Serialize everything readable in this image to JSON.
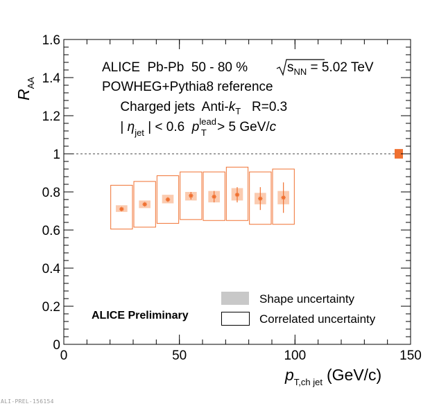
{
  "chart_data": {
    "type": "scatter",
    "xlabel": {
      "main": "p",
      "sub": "T,ch jet",
      "unit": "(GeV/c)"
    },
    "ylabel": {
      "main": "R",
      "sub": "AA"
    },
    "xlim": [
      0,
      150
    ],
    "ylim": [
      0,
      1.6
    ],
    "xticks": [
      0,
      50,
      100,
      150
    ],
    "yticks": [
      0,
      0.2,
      0.4,
      0.6,
      0.8,
      1,
      1.2,
      1.4,
      1.6
    ],
    "ytick_labels": [
      "0",
      "0.2",
      "0.4",
      "0.6",
      "0.8",
      "1",
      "1.2",
      "1.4",
      "1.6"
    ],
    "reference_line": 1.0,
    "color": "#f07030",
    "shape_color": "#fbcbb0",
    "bins": [
      {
        "x": 25,
        "xlow": 20,
        "xhigh": 30,
        "y": 0.71,
        "stat": 0.005,
        "shape": [
          0.695,
          0.73
        ],
        "corr": [
          0.605,
          0.835
        ]
      },
      {
        "x": 35,
        "xlow": 30,
        "xhigh": 40,
        "y": 0.735,
        "stat": 0.01,
        "shape": [
          0.715,
          0.755
        ],
        "corr": [
          0.615,
          0.855
        ]
      },
      {
        "x": 45,
        "xlow": 40,
        "xhigh": 50,
        "y": 0.76,
        "stat": 0.012,
        "shape": [
          0.74,
          0.785
        ],
        "corr": [
          0.635,
          0.885
        ]
      },
      {
        "x": 55,
        "xlow": 50,
        "xhigh": 60,
        "y": 0.78,
        "stat": 0.02,
        "shape": [
          0.755,
          0.8
        ],
        "corr": [
          0.655,
          0.905
        ]
      },
      {
        "x": 65,
        "xlow": 60,
        "xhigh": 70,
        "y": 0.775,
        "stat": 0.03,
        "shape": [
          0.745,
          0.805
        ],
        "corr": [
          0.65,
          0.905
        ]
      },
      {
        "x": 75,
        "xlow": 70,
        "xhigh": 80,
        "y": 0.785,
        "stat": 0.04,
        "shape": [
          0.755,
          0.82
        ],
        "corr": [
          0.65,
          0.93
        ]
      },
      {
        "x": 85,
        "xlow": 80,
        "xhigh": 90,
        "y": 0.765,
        "stat": 0.06,
        "shape": [
          0.735,
          0.795
        ],
        "corr": [
          0.63,
          0.905
        ]
      },
      {
        "x": 95,
        "xlow": 90,
        "xhigh": 100,
        "y": 0.77,
        "stat": 0.08,
        "shape": [
          0.735,
          0.805
        ],
        "corr": [
          0.63,
          0.92
        ]
      }
    ],
    "norm_box": {
      "ylow": 0.975,
      "yhigh": 1.025
    }
  },
  "annotations": {
    "line1": {
      "a": "ALICE  Pb-Pb  50 - 80 %  ",
      "sqrt_s": "s",
      "sqrt_sub": "NN",
      "b": " = 5.02 TeV"
    },
    "line2": "POWHEG+Pythia8 reference",
    "line3": {
      "a": "Charged jets  Anti-",
      "k": "k",
      "ksub": "T",
      "b": "   R=0.3"
    },
    "line4": {
      "a": "| ",
      "eta": "η",
      "etasub": "jet",
      "b": " | < 0.6  ",
      "p": "p",
      "psup": "lead",
      "psub": "T",
      "c": " > 5 GeV/",
      "cit": "c"
    },
    "preliminary": "ALICE Preliminary"
  },
  "legend": [
    {
      "label": "Shape uncertainty",
      "style": "filled-gray"
    },
    {
      "label": "Correlated uncertainty",
      "style": "open-box"
    }
  ],
  "footer": "ALI-PREL-156154"
}
